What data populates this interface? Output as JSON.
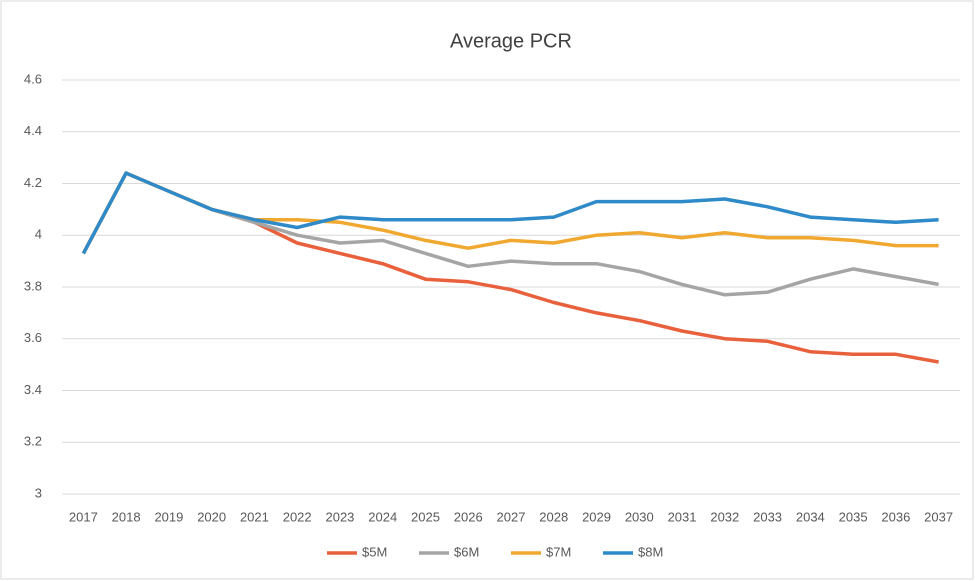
{
  "chart_data": {
    "type": "line",
    "title": "Average PCR",
    "categories": [
      "2017",
      "2018",
      "2019",
      "2020",
      "2021",
      "2022",
      "2023",
      "2024",
      "2025",
      "2026",
      "2027",
      "2028",
      "2029",
      "2030",
      "2031",
      "2032",
      "2033",
      "2034",
      "2035",
      "2036",
      "2037"
    ],
    "series": [
      {
        "name": "$5M",
        "color": "#e8603c",
        "values": [
          3.93,
          4.24,
          4.17,
          4.1,
          4.05,
          3.97,
          3.93,
          3.89,
          3.83,
          3.82,
          3.79,
          3.74,
          3.7,
          3.67,
          3.63,
          3.6,
          3.59,
          3.55,
          3.54,
          3.54,
          3.51
        ]
      },
      {
        "name": "$6M",
        "color": "#a5a5a5",
        "values": [
          3.93,
          4.24,
          4.17,
          4.1,
          4.05,
          4.0,
          3.97,
          3.98,
          3.93,
          3.88,
          3.9,
          3.89,
          3.89,
          3.86,
          3.81,
          3.77,
          3.78,
          3.83,
          3.87,
          3.84,
          3.81
        ]
      },
      {
        "name": "$7M",
        "color": "#f0a830",
        "values": [
          3.93,
          4.24,
          4.17,
          4.1,
          4.06,
          4.06,
          4.05,
          4.02,
          3.98,
          3.95,
          3.98,
          3.97,
          4.0,
          4.01,
          3.99,
          4.01,
          3.99,
          3.99,
          3.98,
          3.96,
          3.96
        ]
      },
      {
        "name": "$8M",
        "color": "#2e8ac8",
        "values": [
          3.93,
          4.24,
          4.17,
          4.1,
          4.06,
          4.03,
          4.07,
          4.06,
          4.06,
          4.06,
          4.06,
          4.07,
          4.13,
          4.13,
          4.13,
          4.14,
          4.11,
          4.07,
          4.06,
          4.05,
          4.06
        ]
      }
    ],
    "ylim": [
      3,
      4.6
    ],
    "yticks": [
      3,
      3.2,
      3.4,
      3.6,
      3.8,
      4,
      4.2,
      4.4,
      4.6
    ],
    "grid": true,
    "legend": "bottom"
  }
}
